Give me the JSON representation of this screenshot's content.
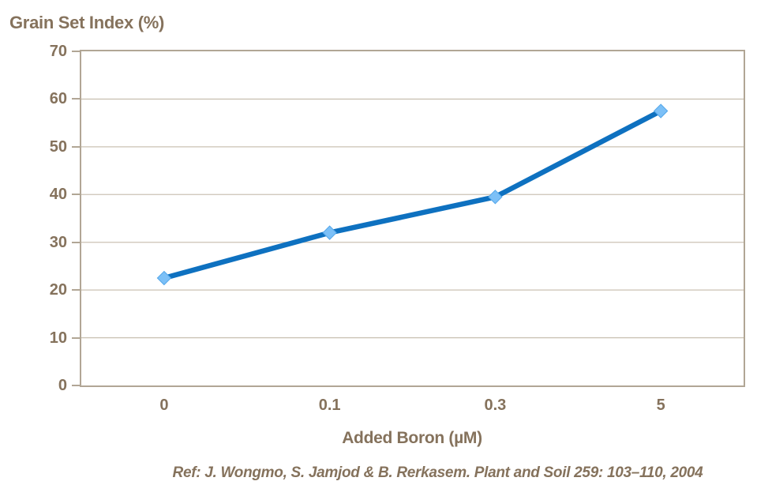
{
  "chart_data": {
    "type": "line",
    "title": "Grain Set Index (%)",
    "xlabel": "Added Boron (µM)",
    "ylabel": "Grain Set Index (%)",
    "categories": [
      "0",
      "0.1",
      "0.3",
      "5"
    ],
    "values": [
      22.5,
      32,
      39.5,
      57.5
    ],
    "series": [
      {
        "name": "Grain Set Index (%)",
        "values": [
          22.5,
          32,
          39.5,
          57.5
        ]
      }
    ],
    "ylim": [
      0,
      70
    ],
    "yticks": [
      0,
      10,
      20,
      30,
      40,
      50,
      60,
      70
    ],
    "grid": "horizontal",
    "legend": "none"
  },
  "footer": {
    "ref": "Ref: J. Wongmo, S. Jamjod & B. Rerkasem. Plant and Soil 259: 103–110, 2004"
  },
  "colors": {
    "text": "#85725c",
    "line": "#0e71c0",
    "marker_fill": "#7cc0f7",
    "marker_edge": "#54a7ea",
    "gridline": "#cbc2b4",
    "plot_border": "#b1a695",
    "background": "#ffffff"
  }
}
